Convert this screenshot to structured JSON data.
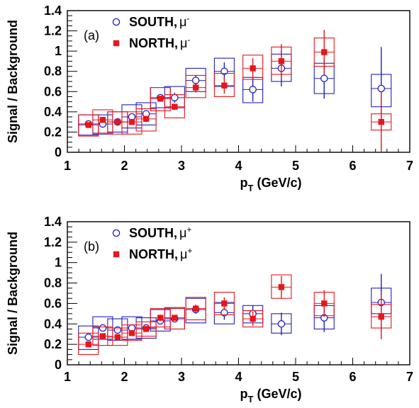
{
  "chart_data": [
    {
      "type": "scatter",
      "panel_label": "(a)",
      "xlabel_main": "p",
      "xlabel_sub": "T",
      "xlabel_rest": " (GeV/c)",
      "ylabel": "Signal / Background",
      "xlim": [
        1,
        7
      ],
      "ylim": [
        0,
        1.4
      ],
      "xticks": [
        1,
        2,
        3,
        4,
        5,
        6,
        7
      ],
      "yticks": [
        0,
        0.2,
        0.4,
        0.6,
        0.8,
        1,
        1.2,
        1.4
      ],
      "ytick_labels": [
        "0",
        "0.2",
        "0.4",
        "0.6",
        "0.8",
        "1",
        "1.2",
        "1.4"
      ],
      "series": [
        {
          "name_text": "SOUTH,",
          "name_particle": "μ",
          "name_charge": "-",
          "color": "#1f1fbf",
          "marker": "open-circle",
          "x": [
            1.37,
            1.62,
            1.88,
            2.13,
            2.38,
            2.63,
            2.88,
            3.25,
            3.75,
            4.25,
            4.75,
            5.5,
            6.5
          ],
          "y": [
            0.28,
            0.28,
            0.3,
            0.35,
            0.38,
            0.54,
            0.54,
            0.71,
            0.8,
            0.62,
            0.83,
            0.73,
            0.63
          ],
          "stat_err": [
            0.02,
            0.02,
            0.02,
            0.02,
            0.03,
            0.03,
            0.05,
            0.05,
            0.09,
            0.12,
            0.18,
            0.2,
            0.41
          ],
          "sys_lo": [
            0.17,
            0.18,
            0.2,
            0.24,
            0.27,
            0.44,
            0.44,
            0.6,
            0.65,
            0.49,
            0.7,
            0.58,
            0.45
          ],
          "sys_hi": [
            0.37,
            0.37,
            0.4,
            0.47,
            0.49,
            0.64,
            0.65,
            0.83,
            0.93,
            0.74,
            0.97,
            0.88,
            0.77
          ]
        },
        {
          "name_text": "NORTH,",
          "name_particle": "μ",
          "name_charge": "-",
          "color": "#e8161b",
          "marker": "filled-square",
          "x": [
            1.37,
            1.62,
            1.88,
            2.13,
            2.38,
            2.63,
            2.88,
            3.25,
            3.75,
            4.25,
            4.75,
            5.5,
            6.5
          ],
          "y": [
            0.27,
            0.32,
            0.3,
            0.3,
            0.33,
            0.53,
            0.45,
            0.64,
            0.66,
            0.83,
            0.9,
            0.99,
            0.3
          ],
          "stat_err": [
            0.02,
            0.02,
            0.02,
            0.02,
            0.03,
            0.03,
            0.03,
            0.05,
            0.08,
            0.1,
            0.17,
            0.22,
            0.3
          ],
          "sys_lo": [
            0.16,
            0.19,
            0.18,
            0.18,
            0.21,
            0.41,
            0.34,
            0.54,
            0.55,
            0.72,
            0.77,
            0.85,
            0.22
          ],
          "sys_hi": [
            0.37,
            0.42,
            0.4,
            0.4,
            0.43,
            0.64,
            0.57,
            0.76,
            0.78,
            0.96,
            1.04,
            1.13,
            0.38
          ]
        }
      ]
    },
    {
      "type": "scatter",
      "panel_label": "(b)",
      "xlabel_main": "p",
      "xlabel_sub": "T",
      "xlabel_rest": " (GeV/c)",
      "ylabel": "Signal / Background",
      "xlim": [
        1,
        7
      ],
      "ylim": [
        0,
        1.4
      ],
      "xticks": [
        1,
        2,
        3,
        4,
        5,
        6,
        7
      ],
      "yticks": [
        0,
        0.2,
        0.4,
        0.6,
        0.8,
        1,
        1.2,
        1.4
      ],
      "ytick_labels": [
        "0",
        "0.2",
        "0.4",
        "0.6",
        "0.8",
        "1",
        "1.2",
        "1.4"
      ],
      "series": [
        {
          "name_text": "SOUTH,",
          "name_particle": "μ",
          "name_charge": "+",
          "color": "#1f1fbf",
          "marker": "open-circle",
          "x": [
            1.37,
            1.62,
            1.88,
            2.13,
            2.38,
            2.63,
            2.88,
            3.25,
            3.75,
            4.25,
            4.75,
            5.5,
            6.5
          ],
          "y": [
            0.27,
            0.36,
            0.34,
            0.36,
            0.36,
            0.43,
            0.45,
            0.54,
            0.51,
            0.5,
            0.4,
            0.46,
            0.61
          ],
          "stat_err": [
            0.02,
            0.02,
            0.02,
            0.02,
            0.02,
            0.03,
            0.03,
            0.04,
            0.07,
            0.08,
            0.11,
            0.14,
            0.28
          ],
          "sys_lo": [
            0.15,
            0.25,
            0.24,
            0.25,
            0.26,
            0.33,
            0.35,
            0.41,
            0.4,
            0.41,
            0.31,
            0.35,
            0.5
          ],
          "sys_hi": [
            0.38,
            0.47,
            0.45,
            0.47,
            0.46,
            0.54,
            0.56,
            0.65,
            0.61,
            0.58,
            0.5,
            0.58,
            0.75
          ]
        },
        {
          "name_text": "NORTH,",
          "name_particle": "μ",
          "name_charge": "+",
          "color": "#e8161b",
          "marker": "filled-square",
          "x": [
            1.37,
            1.62,
            1.88,
            2.13,
            2.38,
            2.63,
            2.88,
            3.25,
            3.75,
            4.25,
            4.75,
            5.5,
            6.5
          ],
          "y": [
            0.2,
            0.28,
            0.27,
            0.31,
            0.35,
            0.46,
            0.46,
            0.55,
            0.6,
            0.45,
            0.76,
            0.6,
            0.47
          ],
          "stat_err": [
            0.02,
            0.02,
            0.02,
            0.02,
            0.02,
            0.03,
            0.03,
            0.04,
            0.06,
            0.07,
            0.11,
            0.13,
            0.22
          ],
          "sys_lo": [
            0.1,
            0.19,
            0.19,
            0.24,
            0.28,
            0.37,
            0.35,
            0.44,
            0.49,
            0.37,
            0.65,
            0.48,
            0.36
          ],
          "sys_hi": [
            0.31,
            0.37,
            0.36,
            0.39,
            0.42,
            0.55,
            0.55,
            0.66,
            0.71,
            0.53,
            0.88,
            0.71,
            0.59
          ]
        }
      ]
    }
  ]
}
